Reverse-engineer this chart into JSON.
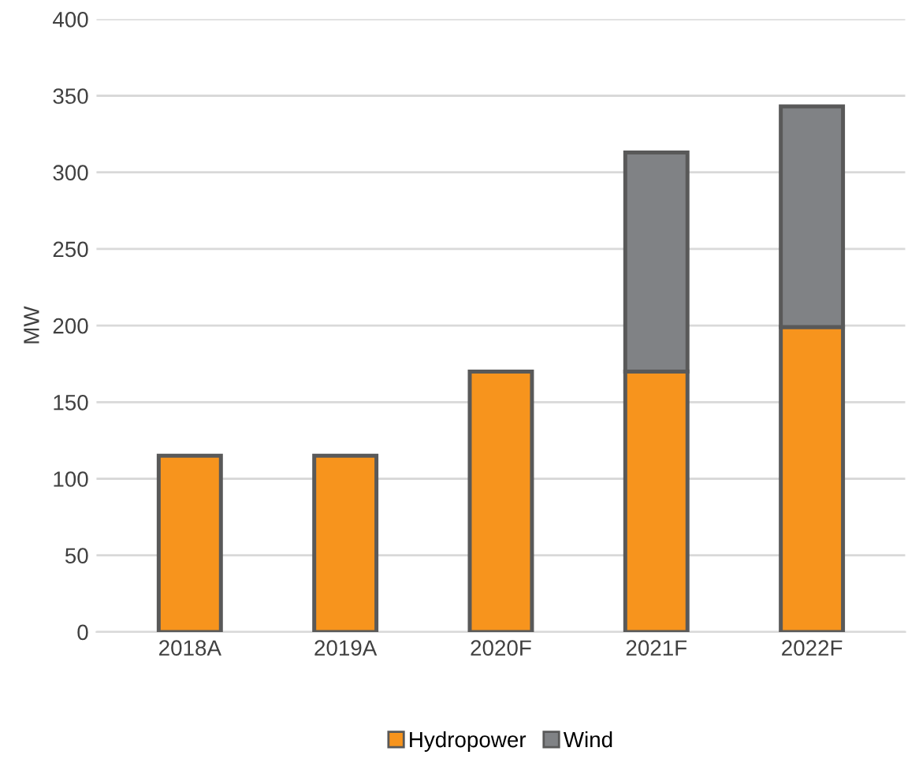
{
  "chart_data": {
    "type": "bar",
    "ylabel": "MW",
    "categories": [
      "2018A",
      "2019A",
      "2020F",
      "2021F",
      "2022F"
    ],
    "series": [
      {
        "name": "Hydropower",
        "color": "#f7941d",
        "values": [
          115,
          115,
          170,
          170,
          199
        ]
      },
      {
        "name": "Wind",
        "color": "#808285",
        "values": [
          null,
          null,
          null,
          143,
          144
        ]
      }
    ],
    "stacked": true,
    "ylim": [
      0,
      400
    ],
    "yticks": [
      0,
      50,
      100,
      150,
      200,
      250,
      300,
      350,
      400
    ],
    "grid": "y",
    "legend": "bottom"
  }
}
